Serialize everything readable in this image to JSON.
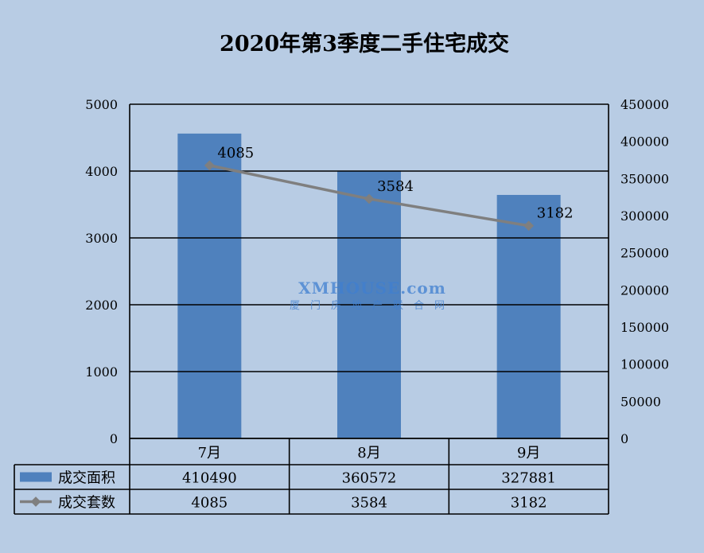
{
  "chart_data": {
    "type": "bar",
    "title": "2020年第3季度二手住宅成交",
    "categories": [
      "7月",
      "8月",
      "9月"
    ],
    "series": [
      {
        "name": "成交面积",
        "type": "bar",
        "axis": "right",
        "values": [
          410490,
          360572,
          327881
        ],
        "color": "#4f81bd"
      },
      {
        "name": "成交套数",
        "type": "line",
        "axis": "left",
        "values": [
          4085,
          3584,
          3182
        ],
        "color": "#7f7f7f",
        "data_labels": [
          "4085",
          "3584",
          "3182"
        ]
      }
    ],
    "y_left": {
      "ylim": [
        0,
        5000
      ],
      "ticks": [
        0,
        1000,
        2000,
        3000,
        4000,
        5000
      ]
    },
    "y_right": {
      "ylim": [
        0,
        450000
      ],
      "ticks": [
        0,
        50000,
        100000,
        150000,
        200000,
        250000,
        300000,
        350000,
        400000,
        450000
      ]
    },
    "grid": true,
    "legend": "data-table"
  },
  "data_table": {
    "rows": [
      {
        "label": "成交面积",
        "values": [
          "410490",
          "360572",
          "327881"
        ]
      },
      {
        "label": "成交套数",
        "values": [
          "4085",
          "3584",
          "3182"
        ]
      }
    ]
  },
  "watermark": {
    "text": "XMHOUSE.com",
    "subtext": "厦门房地产联合网"
  },
  "colors": {
    "background": "#b8cce4",
    "bar": "#4f81bd",
    "line": "#7f7f7f",
    "watermark": "#3f7fd0"
  }
}
